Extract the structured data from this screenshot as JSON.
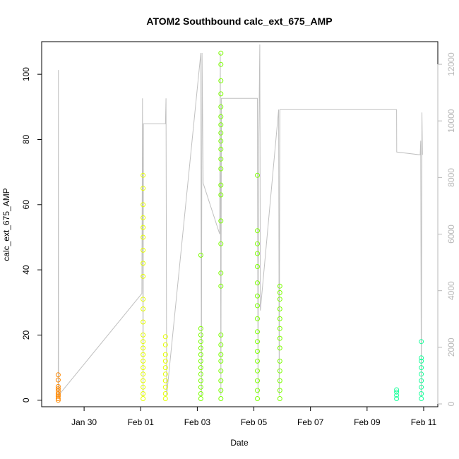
{
  "chart_data": {
    "type": "scatter",
    "title": "ATOM2 Southbound calc_ext_675_AMP",
    "xlabel": "Date",
    "ylabel": "calc_ext_675_AMP",
    "xlim": [
      "2020-01-28T12:00",
      "2020-02-11T12:00"
    ],
    "ylim": [
      -2,
      110
    ],
    "y2lim": [
      -100,
      12800
    ],
    "x_ticks": [
      {
        "value": "2020-01-30",
        "label": "Jan 30"
      },
      {
        "value": "2020-02-01",
        "label": "Feb 01"
      },
      {
        "value": "2020-02-03",
        "label": "Feb 03"
      },
      {
        "value": "2020-02-05",
        "label": "Feb 05"
      },
      {
        "value": "2020-02-07",
        "label": "Feb 07"
      },
      {
        "value": "2020-02-09",
        "label": "Feb 09"
      },
      {
        "value": "2020-02-11",
        "label": "Feb 11"
      }
    ],
    "y_ticks": [
      0,
      20,
      40,
      60,
      80,
      100
    ],
    "y2_ticks": [
      0,
      2000,
      4000,
      6000,
      8000,
      10000,
      12000
    ],
    "grid": false,
    "legend": "none",
    "colors": {
      "axis": "#000000",
      "secondary_axis": "#b8b8b8",
      "depth_line": "#c0c0c0"
    },
    "series": [
      {
        "color": "#ff8800",
        "points": [
          [
            "2020-01-29T02:00",
            0.5
          ],
          [
            "2020-01-29T02:00",
            1.2
          ],
          [
            "2020-01-29T02:00",
            2.0
          ],
          [
            "2020-01-29T02:00",
            2.8
          ],
          [
            "2020-01-29T02:00",
            3.5
          ],
          [
            "2020-01-29T02:00",
            4.2
          ],
          [
            "2020-01-29T02:00",
            7.8
          ],
          [
            "2020-01-29T02:00",
            6.2
          ],
          [
            "2020-01-29T02:00",
            0.0
          ],
          [
            "2020-01-29T02:00",
            1.6
          ]
        ]
      },
      {
        "color": "#e5ff00",
        "points": [
          [
            "2020-02-01T02:00",
            0.5
          ],
          [
            "2020-02-01T02:00",
            2.0
          ],
          [
            "2020-02-01T02:00",
            4.0
          ],
          [
            "2020-02-01T02:00",
            6.0
          ],
          [
            "2020-02-01T02:00",
            8.0
          ],
          [
            "2020-02-01T02:00",
            10.0
          ],
          [
            "2020-02-01T02:00",
            12.0
          ],
          [
            "2020-02-01T02:00",
            14.0
          ],
          [
            "2020-02-01T02:00",
            16.0
          ],
          [
            "2020-02-01T02:00",
            18.0
          ],
          [
            "2020-02-01T02:00",
            20.0
          ],
          [
            "2020-02-01T02:00",
            24.0
          ],
          [
            "2020-02-01T02:00",
            28.0
          ],
          [
            "2020-02-01T02:00",
            31.0
          ],
          [
            "2020-02-01T02:00",
            38.0
          ],
          [
            "2020-02-01T02:00",
            42.0
          ],
          [
            "2020-02-01T02:00",
            46.0
          ],
          [
            "2020-02-01T02:00",
            50.0
          ],
          [
            "2020-02-01T02:00",
            53.0
          ],
          [
            "2020-02-01T02:00",
            56.0
          ],
          [
            "2020-02-01T02:00",
            60.0
          ],
          [
            "2020-02-01T02:00",
            65.0
          ],
          [
            "2020-02-01T02:00",
            69.0
          ],
          [
            "2020-02-01T21:00",
            0.5
          ],
          [
            "2020-02-01T21:00",
            2.0
          ],
          [
            "2020-02-01T21:00",
            4.0
          ],
          [
            "2020-02-01T21:00",
            6.0
          ],
          [
            "2020-02-01T21:00",
            8.0
          ],
          [
            "2020-02-01T21:00",
            10.0
          ],
          [
            "2020-02-01T21:00",
            12.0
          ],
          [
            "2020-02-01T21:00",
            14.0
          ],
          [
            "2020-02-01T21:00",
            17.0
          ],
          [
            "2020-02-01T21:00",
            19.5
          ]
        ]
      },
      {
        "color": "#7cff00",
        "points": [
          [
            "2020-02-03T03:00",
            0.5
          ],
          [
            "2020-02-03T03:00",
            2.0
          ],
          [
            "2020-02-03T03:00",
            4.0
          ],
          [
            "2020-02-03T03:00",
            6.0
          ],
          [
            "2020-02-03T03:00",
            8.0
          ],
          [
            "2020-02-03T03:00",
            10.0
          ],
          [
            "2020-02-03T03:00",
            12.0
          ],
          [
            "2020-02-03T03:00",
            14.0
          ],
          [
            "2020-02-03T03:00",
            16.0
          ],
          [
            "2020-02-03T03:00",
            18.0
          ],
          [
            "2020-02-03T03:00",
            20.0
          ],
          [
            "2020-02-03T03:00",
            22.0
          ],
          [
            "2020-02-03T03:00",
            44.5
          ],
          [
            "2020-02-03T20:00",
            0.5
          ],
          [
            "2020-02-03T20:00",
            3.0
          ],
          [
            "2020-02-03T20:00",
            6.0
          ],
          [
            "2020-02-03T20:00",
            9.0
          ],
          [
            "2020-02-03T20:00",
            12.0
          ],
          [
            "2020-02-03T20:00",
            14.0
          ],
          [
            "2020-02-03T20:00",
            17.0
          ],
          [
            "2020-02-03T20:00",
            20.0
          ],
          [
            "2020-02-03T20:00",
            35.0
          ],
          [
            "2020-02-03T20:00",
            39.0
          ],
          [
            "2020-02-03T20:00",
            48.0
          ],
          [
            "2020-02-03T20:00",
            55.0
          ],
          [
            "2020-02-03T20:00",
            63.0
          ],
          [
            "2020-02-03T20:00",
            66.0
          ],
          [
            "2020-02-03T20:00",
            71.0
          ],
          [
            "2020-02-03T20:00",
            74.0
          ],
          [
            "2020-02-03T20:00",
            77.0
          ],
          [
            "2020-02-03T20:00",
            79.5
          ],
          [
            "2020-02-03T20:00",
            82.0
          ],
          [
            "2020-02-03T20:00",
            84.5
          ],
          [
            "2020-02-03T20:00",
            87.0
          ],
          [
            "2020-02-03T20:00",
            90.0
          ],
          [
            "2020-02-03T20:00",
            94.0
          ],
          [
            "2020-02-03T20:00",
            98.0
          ],
          [
            "2020-02-03T20:00",
            103.0
          ],
          [
            "2020-02-03T20:00",
            106.5
          ],
          [
            "2020-02-05T03:00",
            0.5
          ],
          [
            "2020-02-05T03:00",
            3.0
          ],
          [
            "2020-02-05T03:00",
            6.0
          ],
          [
            "2020-02-05T03:00",
            9.0
          ],
          [
            "2020-02-05T03:00",
            12.0
          ],
          [
            "2020-02-05T03:00",
            15.0
          ],
          [
            "2020-02-05T03:00",
            18.0
          ],
          [
            "2020-02-05T03:00",
            21.0
          ],
          [
            "2020-02-05T03:00",
            25.0
          ],
          [
            "2020-02-05T03:00",
            29.0
          ],
          [
            "2020-02-05T03:00",
            32.0
          ],
          [
            "2020-02-05T03:00",
            36.0
          ],
          [
            "2020-02-05T03:00",
            41.0
          ],
          [
            "2020-02-05T03:00",
            45.0
          ],
          [
            "2020-02-05T03:00",
            48.0
          ],
          [
            "2020-02-05T03:00",
            52.0
          ],
          [
            "2020-02-05T03:00",
            69.0
          ],
          [
            "2020-02-05T22:00",
            0.5
          ],
          [
            "2020-02-05T22:00",
            3.0
          ],
          [
            "2020-02-05T22:00",
            6.0
          ],
          [
            "2020-02-05T22:00",
            9.0
          ],
          [
            "2020-02-05T22:00",
            12.0
          ],
          [
            "2020-02-05T22:00",
            16.0
          ],
          [
            "2020-02-05T22:00",
            19.0
          ],
          [
            "2020-02-05T22:00",
            22.0
          ],
          [
            "2020-02-05T22:00",
            25.0
          ],
          [
            "2020-02-05T22:00",
            28.0
          ],
          [
            "2020-02-05T22:00",
            31.0
          ],
          [
            "2020-02-05T22:00",
            33.0
          ],
          [
            "2020-02-05T22:00",
            35.0
          ]
        ]
      },
      {
        "color": "#1aff9c",
        "points": [
          [
            "2020-02-10T01:00",
            0.5
          ],
          [
            "2020-02-10T01:00",
            1.5
          ],
          [
            "2020-02-10T01:00",
            2.5
          ],
          [
            "2020-02-10T01:00",
            3.2
          ],
          [
            "2020-02-10T22:00",
            0.5
          ],
          [
            "2020-02-10T22:00",
            2.0
          ],
          [
            "2020-02-10T22:00",
            4.0
          ],
          [
            "2020-02-10T22:00",
            6.0
          ],
          [
            "2020-02-10T22:00",
            8.0
          ],
          [
            "2020-02-10T22:00",
            10.0
          ],
          [
            "2020-02-10T22:00",
            12.0
          ],
          [
            "2020-02-10T22:00",
            13.0
          ],
          [
            "2020-02-10T22:00",
            18.0
          ]
        ]
      }
    ],
    "secondary_series": [
      {
        "axis": "right",
        "color": "#c0c0c0",
        "points": [
          [
            "2020-01-29T02:00",
            300
          ],
          [
            "2020-01-29T02:10",
            11800
          ],
          [
            "2020-01-29T02:20",
            300
          ],
          [
            "2020-02-01T01:00",
            3900
          ],
          [
            "2020-02-01T01:30",
            10800
          ],
          [
            "2020-02-01T02:00",
            300
          ],
          [
            "2020-02-01T02:20",
            9900
          ],
          [
            "2020-02-01T21:00",
            9900
          ],
          [
            "2020-02-01T21:30",
            10800
          ],
          [
            "2020-02-01T22:00",
            300
          ],
          [
            "2020-02-03T03:00",
            12400
          ],
          [
            "2020-02-03T03:30",
            300
          ],
          [
            "2020-02-03T04:00",
            12400
          ],
          [
            "2020-02-03T05:00",
            7800
          ],
          [
            "2020-02-03T19:00",
            6000
          ],
          [
            "2020-02-03T19:30",
            12400
          ],
          [
            "2020-02-03T20:00",
            300
          ],
          [
            "2020-02-03T20:30",
            10800
          ],
          [
            "2020-02-05T03:00",
            10800
          ],
          [
            "2020-02-05T03:30",
            300
          ],
          [
            "2020-02-05T04:00",
            8700
          ],
          [
            "2020-02-05T05:00",
            12700
          ],
          [
            "2020-02-05T05:30",
            3300
          ],
          [
            "2020-02-05T21:00",
            10400
          ],
          [
            "2020-02-05T21:30",
            300
          ],
          [
            "2020-02-05T22:00",
            10400
          ],
          [
            "2020-02-10T01:00",
            10400
          ],
          [
            "2020-02-10T01:10",
            8900
          ],
          [
            "2020-02-10T21:00",
            8800
          ],
          [
            "2020-02-10T21:30",
            9300
          ],
          [
            "2020-02-10T22:00",
            300
          ],
          [
            "2020-02-10T22:30",
            10300
          ],
          [
            "2020-02-10T23:00",
            8800
          ]
        ]
      }
    ]
  }
}
